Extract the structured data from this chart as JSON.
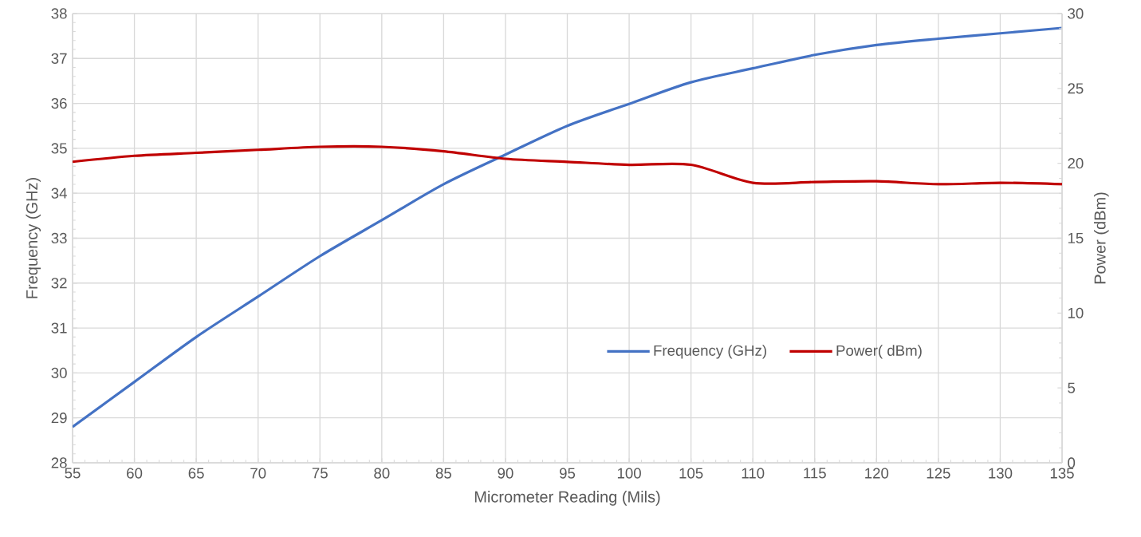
{
  "chart_data": {
    "type": "line",
    "xlabel": "Micrometer Reading (Mils)",
    "ylabel": "Frequency (GHz)",
    "y2label": "Power (dBm)",
    "x": [
      55,
      60,
      65,
      70,
      75,
      80,
      85,
      90,
      95,
      100,
      105,
      110,
      115,
      120,
      125,
      130,
      135
    ],
    "series": [
      {
        "name": "Frequency (GHz)",
        "color": "#4472c4",
        "values": [
          28.8,
          29.8,
          30.8,
          31.7,
          32.6,
          33.4,
          34.2,
          34.86,
          35.5,
          35.99,
          36.47,
          36.78,
          37.08,
          37.3,
          37.44,
          37.56,
          37.68
        ]
      },
      {
        "name": "Power( dBm)",
        "color": "#c00000",
        "axis": "y2",
        "values": [
          20.1,
          20.5,
          20.7,
          20.9,
          21.1,
          21.1,
          20.8,
          20.3,
          20.1,
          19.9,
          19.9,
          18.7,
          18.75,
          18.8,
          18.6,
          18.7,
          18.6
        ]
      }
    ],
    "xlim": [
      55,
      135
    ],
    "xticks": [
      55,
      60,
      65,
      70,
      75,
      80,
      85,
      90,
      95,
      100,
      105,
      110,
      115,
      120,
      125,
      130,
      135
    ],
    "ylim": [
      28,
      38
    ],
    "yticks": [
      28,
      29,
      30,
      31,
      32,
      33,
      34,
      35,
      36,
      37,
      38
    ],
    "y2lim": [
      0,
      30
    ],
    "y2ticks": [
      0,
      5,
      10,
      15,
      20,
      25,
      30
    ],
    "grid": true,
    "legend": "bottom right",
    "marker": "none",
    "line_style": "solid"
  }
}
